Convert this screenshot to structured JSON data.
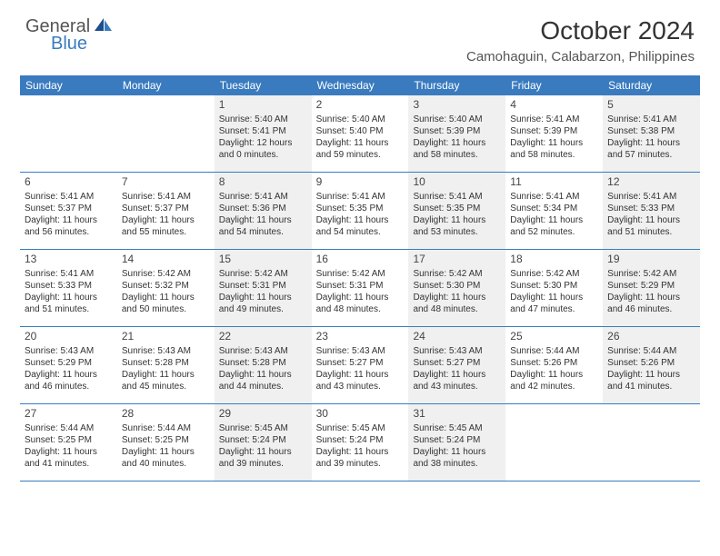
{
  "logo": {
    "text1": "General",
    "text2": "Blue"
  },
  "title": "October 2024",
  "location": "Camohaguin, Calabarzon, Philippines",
  "colors": {
    "accent": "#3a7bbf",
    "shade": "#f0f0f0",
    "bg": "#ffffff",
    "text": "#333333",
    "header_text": "#ffffff"
  },
  "days_of_week": [
    "Sunday",
    "Monday",
    "Tuesday",
    "Wednesday",
    "Thursday",
    "Friday",
    "Saturday"
  ],
  "weeks": [
    [
      {
        "num": "",
        "sunrise": "",
        "sunset": "",
        "daylight": "",
        "shade": false
      },
      {
        "num": "",
        "sunrise": "",
        "sunset": "",
        "daylight": "",
        "shade": false
      },
      {
        "num": "1",
        "sunrise": "Sunrise: 5:40 AM",
        "sunset": "Sunset: 5:41 PM",
        "daylight": "Daylight: 12 hours and 0 minutes.",
        "shade": true
      },
      {
        "num": "2",
        "sunrise": "Sunrise: 5:40 AM",
        "sunset": "Sunset: 5:40 PM",
        "daylight": "Daylight: 11 hours and 59 minutes.",
        "shade": false
      },
      {
        "num": "3",
        "sunrise": "Sunrise: 5:40 AM",
        "sunset": "Sunset: 5:39 PM",
        "daylight": "Daylight: 11 hours and 58 minutes.",
        "shade": true
      },
      {
        "num": "4",
        "sunrise": "Sunrise: 5:41 AM",
        "sunset": "Sunset: 5:39 PM",
        "daylight": "Daylight: 11 hours and 58 minutes.",
        "shade": false
      },
      {
        "num": "5",
        "sunrise": "Sunrise: 5:41 AM",
        "sunset": "Sunset: 5:38 PM",
        "daylight": "Daylight: 11 hours and 57 minutes.",
        "shade": true
      }
    ],
    [
      {
        "num": "6",
        "sunrise": "Sunrise: 5:41 AM",
        "sunset": "Sunset: 5:37 PM",
        "daylight": "Daylight: 11 hours and 56 minutes.",
        "shade": false
      },
      {
        "num": "7",
        "sunrise": "Sunrise: 5:41 AM",
        "sunset": "Sunset: 5:37 PM",
        "daylight": "Daylight: 11 hours and 55 minutes.",
        "shade": false
      },
      {
        "num": "8",
        "sunrise": "Sunrise: 5:41 AM",
        "sunset": "Sunset: 5:36 PM",
        "daylight": "Daylight: 11 hours and 54 minutes.",
        "shade": true
      },
      {
        "num": "9",
        "sunrise": "Sunrise: 5:41 AM",
        "sunset": "Sunset: 5:35 PM",
        "daylight": "Daylight: 11 hours and 54 minutes.",
        "shade": false
      },
      {
        "num": "10",
        "sunrise": "Sunrise: 5:41 AM",
        "sunset": "Sunset: 5:35 PM",
        "daylight": "Daylight: 11 hours and 53 minutes.",
        "shade": true
      },
      {
        "num": "11",
        "sunrise": "Sunrise: 5:41 AM",
        "sunset": "Sunset: 5:34 PM",
        "daylight": "Daylight: 11 hours and 52 minutes.",
        "shade": false
      },
      {
        "num": "12",
        "sunrise": "Sunrise: 5:41 AM",
        "sunset": "Sunset: 5:33 PM",
        "daylight": "Daylight: 11 hours and 51 minutes.",
        "shade": true
      }
    ],
    [
      {
        "num": "13",
        "sunrise": "Sunrise: 5:41 AM",
        "sunset": "Sunset: 5:33 PM",
        "daylight": "Daylight: 11 hours and 51 minutes.",
        "shade": false
      },
      {
        "num": "14",
        "sunrise": "Sunrise: 5:42 AM",
        "sunset": "Sunset: 5:32 PM",
        "daylight": "Daylight: 11 hours and 50 minutes.",
        "shade": false
      },
      {
        "num": "15",
        "sunrise": "Sunrise: 5:42 AM",
        "sunset": "Sunset: 5:31 PM",
        "daylight": "Daylight: 11 hours and 49 minutes.",
        "shade": true
      },
      {
        "num": "16",
        "sunrise": "Sunrise: 5:42 AM",
        "sunset": "Sunset: 5:31 PM",
        "daylight": "Daylight: 11 hours and 48 minutes.",
        "shade": false
      },
      {
        "num": "17",
        "sunrise": "Sunrise: 5:42 AM",
        "sunset": "Sunset: 5:30 PM",
        "daylight": "Daylight: 11 hours and 48 minutes.",
        "shade": true
      },
      {
        "num": "18",
        "sunrise": "Sunrise: 5:42 AM",
        "sunset": "Sunset: 5:30 PM",
        "daylight": "Daylight: 11 hours and 47 minutes.",
        "shade": false
      },
      {
        "num": "19",
        "sunrise": "Sunrise: 5:42 AM",
        "sunset": "Sunset: 5:29 PM",
        "daylight": "Daylight: 11 hours and 46 minutes.",
        "shade": true
      }
    ],
    [
      {
        "num": "20",
        "sunrise": "Sunrise: 5:43 AM",
        "sunset": "Sunset: 5:29 PM",
        "daylight": "Daylight: 11 hours and 46 minutes.",
        "shade": false
      },
      {
        "num": "21",
        "sunrise": "Sunrise: 5:43 AM",
        "sunset": "Sunset: 5:28 PM",
        "daylight": "Daylight: 11 hours and 45 minutes.",
        "shade": false
      },
      {
        "num": "22",
        "sunrise": "Sunrise: 5:43 AM",
        "sunset": "Sunset: 5:28 PM",
        "daylight": "Daylight: 11 hours and 44 minutes.",
        "shade": true
      },
      {
        "num": "23",
        "sunrise": "Sunrise: 5:43 AM",
        "sunset": "Sunset: 5:27 PM",
        "daylight": "Daylight: 11 hours and 43 minutes.",
        "shade": false
      },
      {
        "num": "24",
        "sunrise": "Sunrise: 5:43 AM",
        "sunset": "Sunset: 5:27 PM",
        "daylight": "Daylight: 11 hours and 43 minutes.",
        "shade": true
      },
      {
        "num": "25",
        "sunrise": "Sunrise: 5:44 AM",
        "sunset": "Sunset: 5:26 PM",
        "daylight": "Daylight: 11 hours and 42 minutes.",
        "shade": false
      },
      {
        "num": "26",
        "sunrise": "Sunrise: 5:44 AM",
        "sunset": "Sunset: 5:26 PM",
        "daylight": "Daylight: 11 hours and 41 minutes.",
        "shade": true
      }
    ],
    [
      {
        "num": "27",
        "sunrise": "Sunrise: 5:44 AM",
        "sunset": "Sunset: 5:25 PM",
        "daylight": "Daylight: 11 hours and 41 minutes.",
        "shade": false
      },
      {
        "num": "28",
        "sunrise": "Sunrise: 5:44 AM",
        "sunset": "Sunset: 5:25 PM",
        "daylight": "Daylight: 11 hours and 40 minutes.",
        "shade": false
      },
      {
        "num": "29",
        "sunrise": "Sunrise: 5:45 AM",
        "sunset": "Sunset: 5:24 PM",
        "daylight": "Daylight: 11 hours and 39 minutes.",
        "shade": true
      },
      {
        "num": "30",
        "sunrise": "Sunrise: 5:45 AM",
        "sunset": "Sunset: 5:24 PM",
        "daylight": "Daylight: 11 hours and 39 minutes.",
        "shade": false
      },
      {
        "num": "31",
        "sunrise": "Sunrise: 5:45 AM",
        "sunset": "Sunset: 5:24 PM",
        "daylight": "Daylight: 11 hours and 38 minutes.",
        "shade": true
      },
      {
        "num": "",
        "sunrise": "",
        "sunset": "",
        "daylight": "",
        "shade": false
      },
      {
        "num": "",
        "sunrise": "",
        "sunset": "",
        "daylight": "",
        "shade": false
      }
    ]
  ]
}
